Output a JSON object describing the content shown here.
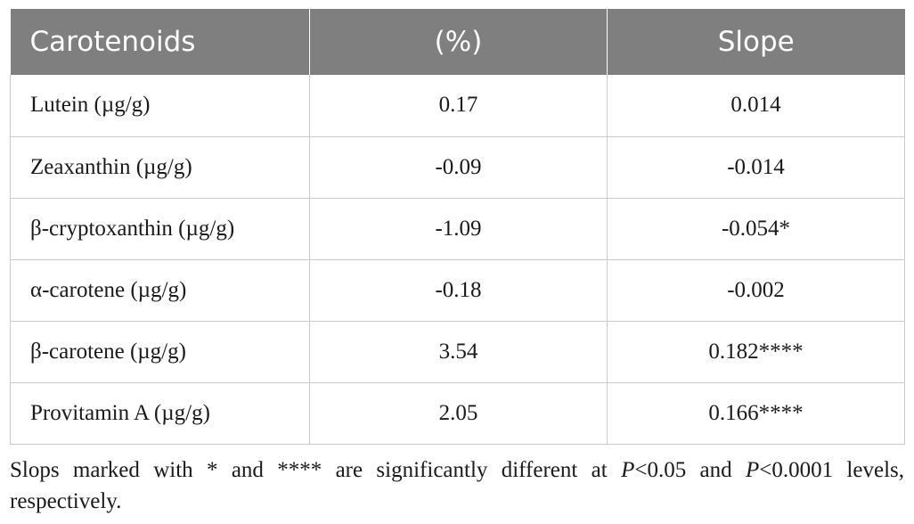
{
  "table": {
    "headers": [
      "Carotenoids",
      "(%)",
      "Slope"
    ],
    "rows": [
      {
        "name": "Lutein (µg/g)",
        "percent": "0.17",
        "slope": "0.014"
      },
      {
        "name": "Zeaxanthin (µg/g)",
        "percent": "-0.09",
        "slope": "-0.014"
      },
      {
        "name": "β-cryptoxanthin (µg/g)",
        "percent": "-1.09",
        "slope": "-0.054*"
      },
      {
        "name": "α-carotene (µg/g)",
        "percent": "-0.18",
        "slope": "-0.002"
      },
      {
        "name": "β-carotene (µg/g)",
        "percent": "3.54",
        "slope": "0.182****"
      },
      {
        "name": "Provitamin A (µg/g)",
        "percent": "2.05",
        "slope": "0.166****"
      }
    ],
    "header_color": "#7f7f7f"
  },
  "footnote": {
    "part1": "Slops marked with * and **** are significantly different at ",
    "p1": "P",
    "part2": "<0.05 and ",
    "p2": "P",
    "part3": "<0.0001 levels, respectively."
  }
}
